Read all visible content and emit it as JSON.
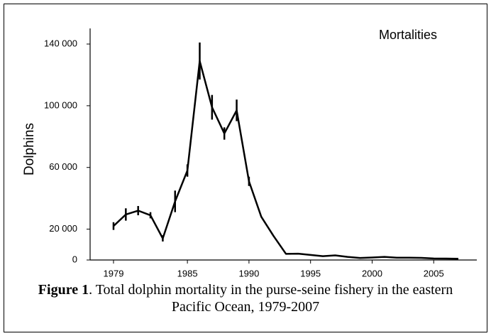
{
  "chart_data": {
    "type": "line",
    "annotation": "Mortalities",
    "ylabel": "Dolphins",
    "x": [
      1979,
      1980,
      1981,
      1982,
      1983,
      1984,
      1985,
      1986,
      1987,
      1988,
      1989,
      1990,
      1991,
      1992,
      1993,
      1994,
      1995,
      1996,
      1997,
      1998,
      1999,
      2000,
      2001,
      2002,
      2003,
      2004,
      2005,
      2006,
      2007
    ],
    "series": [
      {
        "color": "#000000",
        "values": [
          22000,
          29500,
          32000,
          29000,
          14000,
          38000,
          58000,
          129000,
          99000,
          82000,
          97000,
          51000,
          28000,
          15500,
          4000,
          4100,
          3300,
          2500,
          3000,
          2000,
          1300,
          1600,
          2000,
          1500,
          1500,
          1400,
          1000,
          900,
          800
        ],
        "errors": [
          2500,
          4000,
          3000,
          2000,
          2000,
          7000,
          4000,
          12000,
          8000,
          4000,
          7000,
          3000,
          null,
          null,
          null,
          null,
          null,
          null,
          null,
          null,
          null,
          null,
          null,
          null,
          null,
          null,
          null,
          null,
          null
        ]
      }
    ],
    "xlim": [
      1977.1,
      2008.5
    ],
    "ylim": [
      0,
      140000
    ],
    "xticks": [
      1979,
      1985,
      1990,
      1995,
      2000,
      2005
    ],
    "yticks": [
      {
        "value": 0,
        "label": "0"
      },
      {
        "value": 20000,
        "label": "20 000"
      },
      {
        "value": 60000,
        "label": "60 000"
      },
      {
        "value": 100000,
        "label": "100 000"
      },
      {
        "value": 140000,
        "label": "140 000"
      }
    ],
    "caption": {
      "label": "Figure 1",
      "text": ". Total dolphin mortality in the purse-seine fishery in the eastern Pacific Ocean, 1979-2007"
    }
  }
}
